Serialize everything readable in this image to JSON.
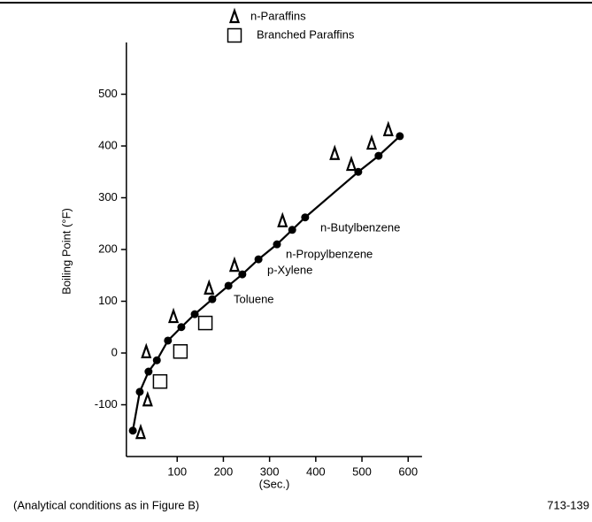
{
  "chart_data": {
    "type": "scatter",
    "ylabel": "Boiling Point (°F)",
    "xlabel": "(Sec.)",
    "footnote": "(Analytical conditions as in Figure B)",
    "figure_id": "713-139",
    "xlim": [
      -10,
      630
    ],
    "xticks": [
      100,
      200,
      300,
      400,
      500,
      600
    ],
    "ylim": [
      -200,
      600
    ],
    "yticks": [
      -100,
      0,
      100,
      200,
      300,
      400,
      500
    ],
    "annotations": [
      "Toluene",
      "p-Xylene",
      "n-Propylbenzene",
      "n-Butylbenzene"
    ],
    "series": [
      {
        "name": "n-Paraffins",
        "marker": "triangle",
        "color": "#000000",
        "x": [
          21,
          36,
          33,
          92,
          169,
          224,
          328,
          441,
          477,
          521,
          557
        ],
        "values": [
          -154,
          -91,
          2,
          70,
          125,
          169,
          255,
          385,
          364,
          405,
          431
        ]
      },
      {
        "name": "Branched Paraffins",
        "marker": "square",
        "color": "#000000",
        "x": [
          63,
          107,
          161
        ],
        "values": [
          -55,
          3,
          58
        ]
      },
      {
        "marker": "circle",
        "line": true,
        "color": "#000000",
        "x": [
          4,
          19,
          38,
          56,
          80,
          109,
          138,
          176,
          211,
          241,
          276,
          316,
          349,
          377,
          492,
          536,
          582
        ],
        "values": [
          -150,
          -75,
          -36,
          -14,
          24,
          50,
          75,
          104,
          130,
          152,
          181,
          210,
          238,
          262,
          350,
          381,
          419
        ]
      }
    ]
  }
}
